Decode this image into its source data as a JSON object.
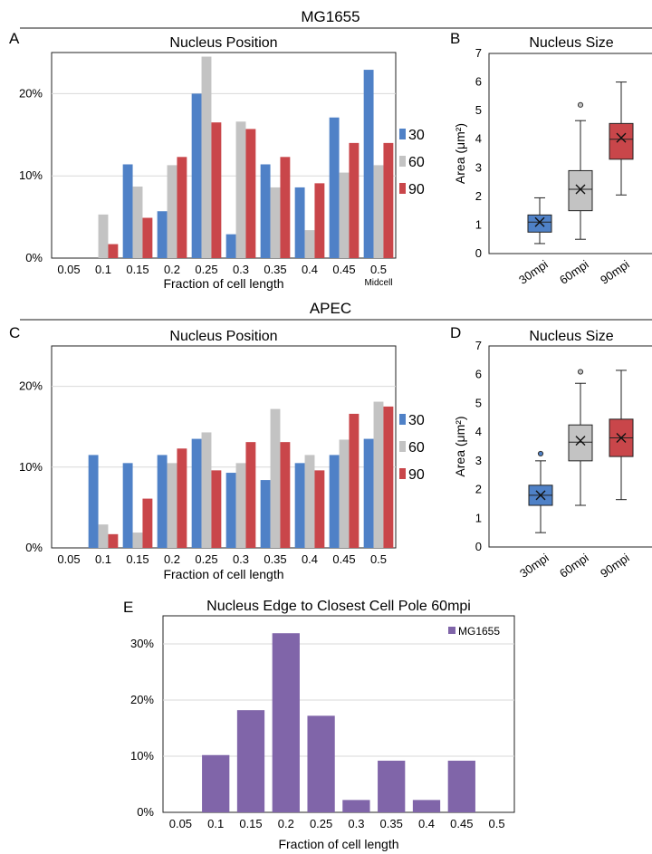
{
  "headers": {
    "top": "MG1655",
    "middle": "APEC"
  },
  "panel_letters": {
    "A": "A",
    "B": "B",
    "C": "C",
    "D": "D",
    "E": "E"
  },
  "colors": {
    "s30": "#4f81c7",
    "s60": "#c3c3c3",
    "s90": "#c9464a",
    "mg1655": "#8065a9",
    "rule": "#8c8c8c",
    "grid": "#d9d9d9"
  },
  "chart_data": [
    {
      "id": "A",
      "type": "bar",
      "title": "Nucleus Position",
      "xlabel": "Fraction of cell length",
      "ylabel": "",
      "categories": [
        "0.05",
        "0.1",
        "0.15",
        "0.2",
        "0.25",
        "0.3",
        "0.35",
        "0.4",
        "0.45",
        "0.5"
      ],
      "extra_tick_label": "Midcell",
      "yticks": [
        "0%",
        "10%",
        "20%"
      ],
      "ylim": [
        0,
        25
      ],
      "legend": "right",
      "series": [
        {
          "name": "30",
          "values": [
            0,
            0,
            11.4,
            5.7,
            20.0,
            2.9,
            11.4,
            8.6,
            17.1,
            22.9
          ]
        },
        {
          "name": "60",
          "values": [
            0,
            5.3,
            8.7,
            11.3,
            24.5,
            16.6,
            8.6,
            3.4,
            10.4,
            11.3
          ]
        },
        {
          "name": "90",
          "values": [
            0,
            1.7,
            4.9,
            12.3,
            16.5,
            15.7,
            12.3,
            9.1,
            14.0,
            14.0
          ]
        }
      ]
    },
    {
      "id": "B",
      "type": "box",
      "title": "Nucleus Size",
      "ylabel": "Area (μm²)",
      "yticks": [
        "0",
        "1",
        "2",
        "3",
        "4",
        "5",
        "6",
        "7"
      ],
      "ylim": [
        0,
        7
      ],
      "boxes": [
        {
          "label": "30mpi",
          "min": 0.35,
          "q1": 0.75,
          "median": 1.1,
          "q3": 1.35,
          "max": 1.95,
          "mean": 1.1,
          "outliers": []
        },
        {
          "label": "60mpi",
          "min": 0.5,
          "q1": 1.5,
          "median": 2.25,
          "q3": 2.9,
          "max": 4.65,
          "mean": 2.25,
          "outliers": [
            5.2
          ]
        },
        {
          "label": "90mpi",
          "min": 2.05,
          "q1": 3.3,
          "median": 4.0,
          "q3": 4.55,
          "max": 6.0,
          "mean": 4.05,
          "outliers": []
        }
      ]
    },
    {
      "id": "C",
      "type": "bar",
      "title": "Nucleus Position",
      "xlabel": "Fraction of cell length",
      "ylabel": "",
      "categories": [
        "0.05",
        "0.1",
        "0.15",
        "0.2",
        "0.25",
        "0.3",
        "0.35",
        "0.4",
        "0.45",
        "0.5"
      ],
      "yticks": [
        "0%",
        "10%",
        "20%"
      ],
      "ylim": [
        0,
        25
      ],
      "legend": "right",
      "series": [
        {
          "name": "30",
          "values": [
            0,
            11.5,
            10.5,
            11.5,
            13.5,
            9.3,
            8.4,
            10.5,
            11.5,
            13.5
          ]
        },
        {
          "name": "60",
          "values": [
            0,
            2.9,
            1.9,
            10.5,
            14.3,
            10.5,
            17.2,
            11.5,
            13.4,
            18.1
          ]
        },
        {
          "name": "90",
          "values": [
            0,
            1.7,
            6.1,
            12.3,
            9.6,
            13.1,
            13.1,
            9.6,
            16.6,
            17.5
          ]
        }
      ]
    },
    {
      "id": "D",
      "type": "box",
      "title": "Nucleus Size",
      "ylabel": "Area (μm²)",
      "yticks": [
        "0",
        "1",
        "2",
        "3",
        "4",
        "5",
        "6",
        "7"
      ],
      "ylim": [
        0,
        7
      ],
      "boxes": [
        {
          "label": "30mpi",
          "min": 0.5,
          "q1": 1.45,
          "median": 1.8,
          "q3": 2.15,
          "max": 3.0,
          "mean": 1.8,
          "outliers": [
            3.25
          ]
        },
        {
          "label": "60mpi",
          "min": 1.45,
          "q1": 3.0,
          "median": 3.65,
          "q3": 4.25,
          "max": 5.7,
          "mean": 3.7,
          "outliers": [
            6.1
          ]
        },
        {
          "label": "90mpi",
          "min": 1.65,
          "q1": 3.15,
          "median": 3.8,
          "q3": 4.45,
          "max": 6.15,
          "mean": 3.8,
          "outliers": []
        }
      ]
    },
    {
      "id": "E",
      "type": "bar",
      "title": "Nucleus Edge to Closest Cell Pole 60mpi",
      "xlabel": "Fraction of cell length",
      "ylabel": "",
      "categories": [
        "0.05",
        "0.1",
        "0.15",
        "0.2",
        "0.25",
        "0.3",
        "0.35",
        "0.4",
        "0.45",
        "0.5"
      ],
      "yticks": [
        "0%",
        "10%",
        "20%",
        "30%"
      ],
      "ylim": [
        0,
        35
      ],
      "legend": "top-right",
      "series": [
        {
          "name": "MG1655",
          "values": [
            0,
            10.2,
            18.2,
            31.9,
            17.2,
            2.2,
            9.2,
            2.2,
            9.2,
            0
          ]
        }
      ]
    }
  ]
}
